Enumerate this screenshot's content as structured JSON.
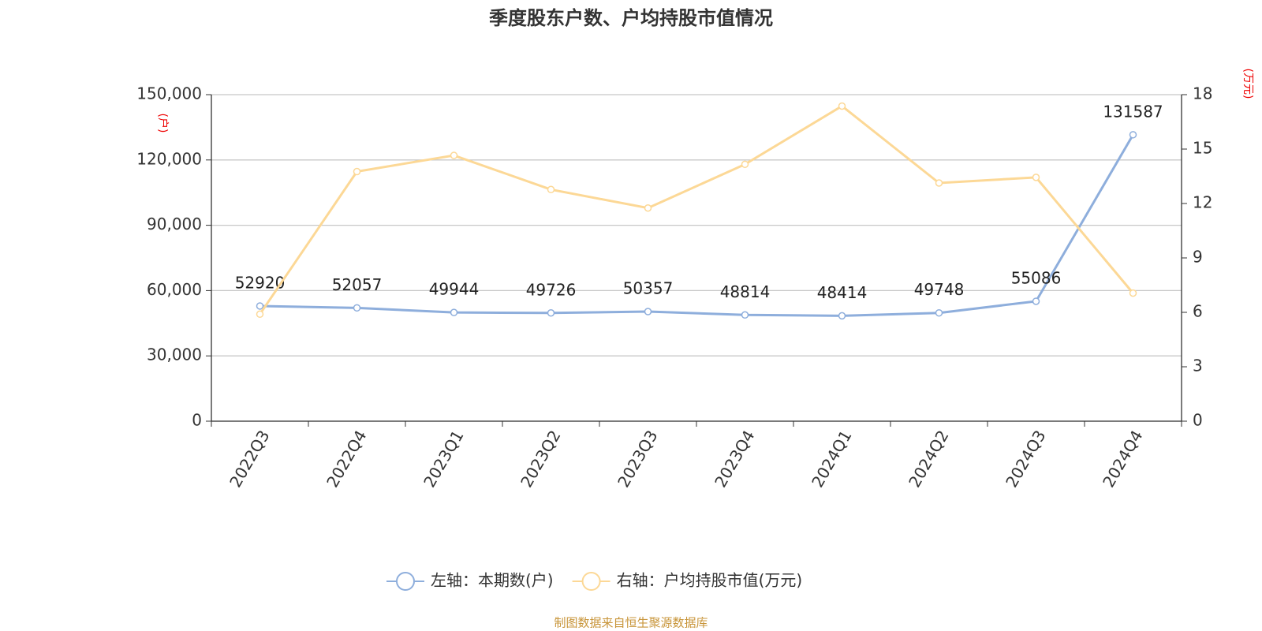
{
  "chart_data": {
    "type": "line",
    "title": "季度股东户数、户均持股市值情况",
    "y_label": "(户)",
    "y2_label": "(万元)",
    "categories": [
      "2022Q3",
      "2022Q4",
      "2023Q1",
      "2023Q2",
      "2023Q3",
      "2023Q4",
      "2024Q1",
      "2024Q2",
      "2024Q3",
      "2024Q4"
    ],
    "series": [
      {
        "name": "左轴：本期数(户)",
        "color": "#8eaedc",
        "axis": "y",
        "data_labels": true,
        "values": [
          52920,
          52057,
          49944,
          49726,
          50357,
          48814,
          48414,
          49748,
          55086,
          131587
        ]
      },
      {
        "name": "右轴：户均持股市值(万元)",
        "color": "#fcd896",
        "axis": "y2",
        "data_labels": false,
        "values": [
          5.9,
          13.76,
          14.65,
          12.77,
          11.75,
          14.16,
          17.37,
          13.13,
          13.44,
          7.06
        ]
      }
    ],
    "ylim": [
      0,
      150000
    ],
    "yticks": [
      0,
      {
        "value": 30000,
        "label": "30,000"
      },
      {
        "value": 60000,
        "label": "60,000"
      },
      {
        "value": 90000,
        "label": "90,000"
      },
      {
        "value": 120000,
        "label": "120,000"
      },
      {
        "value": 150000,
        "label": "150,000"
      }
    ],
    "y2lim": [
      0,
      18
    ],
    "y2ticks": [
      0,
      3,
      6,
      9,
      12,
      15,
      18
    ],
    "grid": true,
    "legend": "bottom",
    "source": "制图数据来自恒生聚源数据库"
  }
}
